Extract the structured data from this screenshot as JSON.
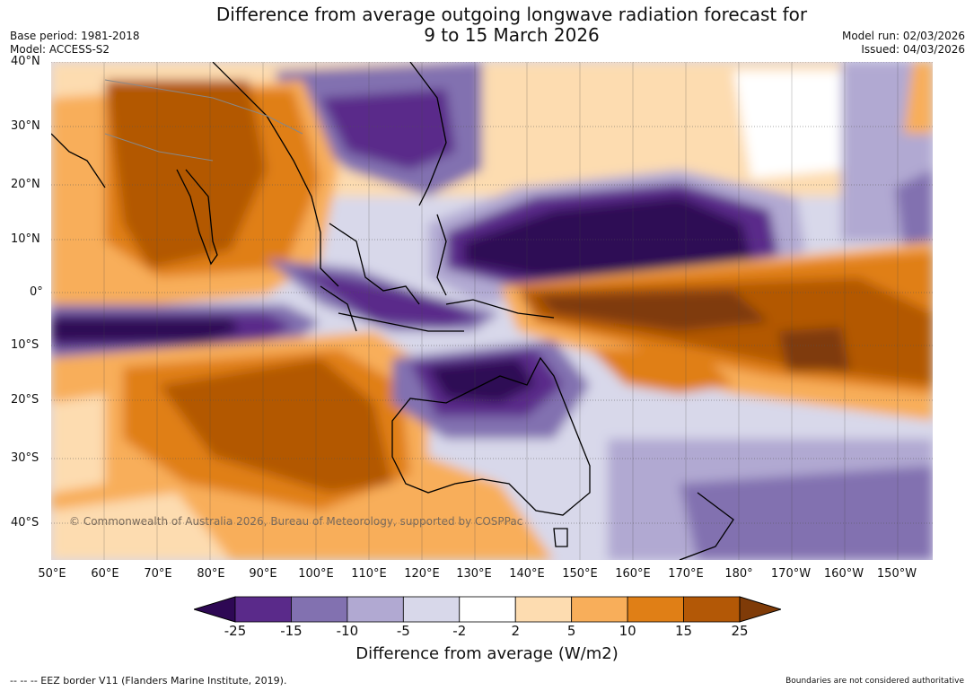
{
  "header": {
    "title_line1": "Difference from average outgoing longwave radiation forecast for",
    "title_line2": "9 to 15 March 2026",
    "base_period": "Base period: 1981-2018",
    "model": "Model: ACCESS-S2",
    "model_run": "Model run: 02/03/2026",
    "issued": "Issued: 04/03/2026"
  },
  "map": {
    "copyright": "© Commonwealth of Australia 2026, Bureau of Meteorology, supported by COSPPac",
    "lat_labels": [
      "40°N",
      "30°N",
      "20°N",
      "10°N",
      "0°",
      "10°S",
      "20°S",
      "30°S",
      "40°S"
    ],
    "lon_labels": [
      "50°E",
      "60°E",
      "70°E",
      "80°E",
      "90°E",
      "100°E",
      "110°E",
      "120°E",
      "130°E",
      "140°E",
      "150°E",
      "160°E",
      "170°E",
      "180°",
      "170°W",
      "160°W",
      "150°W"
    ]
  },
  "chart_data": {
    "type": "heatmap",
    "title": "Difference from average outgoing longwave radiation forecast for 9 to 15 March 2026",
    "colorbar_label": "Difference from average (W/m2)",
    "colorbar_ticks": [
      "-25",
      "-15",
      "-10",
      "-5",
      "-2",
      "2",
      "5",
      "10",
      "15",
      "25"
    ],
    "colorbar_colors": [
      "#2e0854",
      "#5a2a8a",
      "#8271b0",
      "#b1a9d2",
      "#d8d8ea",
      "#ffffff",
      "#fddcb0",
      "#f8ae5a",
      "#e07f16",
      "#b35806",
      "#7f3b08"
    ]
  },
  "footer": {
    "eez": "--  --  -- EEZ border V11 (Flanders Marine Institute, 2019).",
    "boundaries": "Boundaries are not considered authoritative"
  }
}
